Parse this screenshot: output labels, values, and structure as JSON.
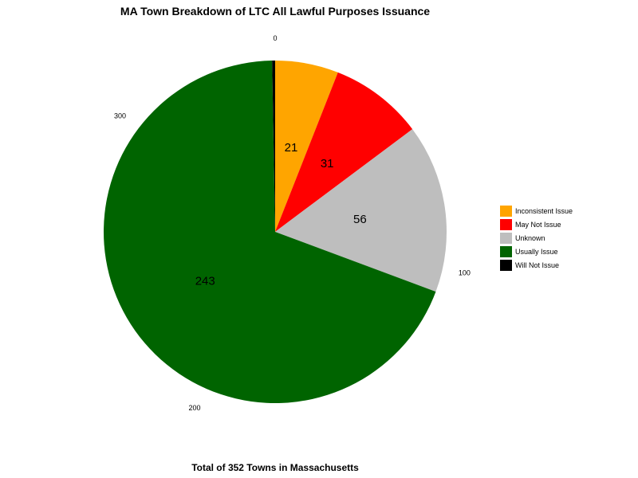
{
  "chart_data": {
    "type": "pie",
    "title": "MA Town Breakdown of LTC All Lawful Purposes Issuance",
    "xlabel": "Total of 352 Towns in Massachusetts",
    "categories": [
      "Inconsistent Issue",
      "May Not Issue",
      "Unknown",
      "Usually Issue",
      "Will Not Issue"
    ],
    "values": [
      21,
      31,
      56,
      243,
      1
    ],
    "slice_labels": [
      "21",
      "31",
      "56",
      "243",
      ""
    ],
    "colors": [
      "#FFA500",
      "#FF0000",
      "#BEBEBE",
      "#006400",
      "#000000"
    ],
    "axis_ticks": [
      0,
      100,
      200,
      300
    ],
    "axis_tick_labels": [
      "0",
      "100",
      "200",
      "300"
    ],
    "total": 352,
    "legend_position": "right"
  }
}
